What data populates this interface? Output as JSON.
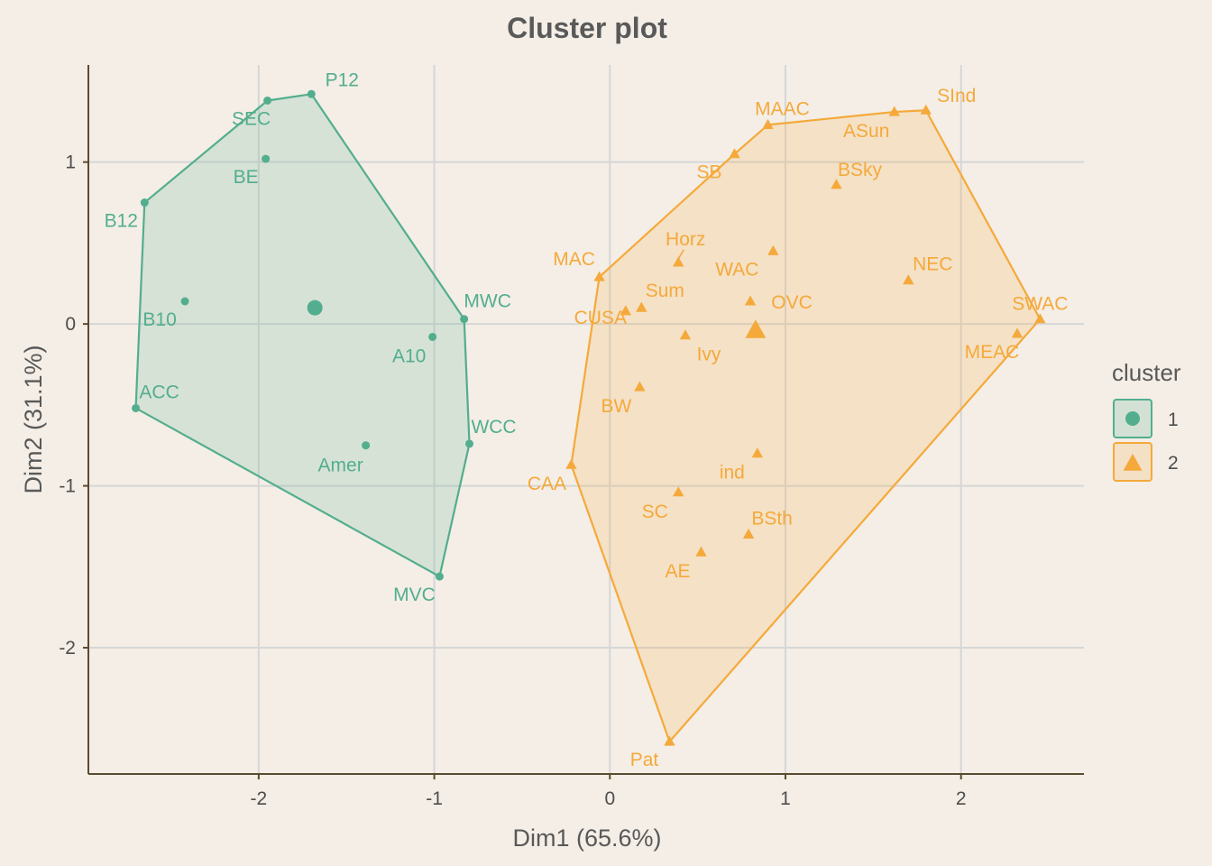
{
  "chart_data": {
    "type": "scatter",
    "title": "Cluster plot",
    "xlabel": "Dim1 (65.6%)",
    "ylabel": "Dim2 (31.1%)",
    "xlim": [
      -2.97,
      2.7
    ],
    "ylim": [
      -2.78,
      1.6
    ],
    "x_ticks": [
      -2,
      -1,
      0,
      1,
      2
    ],
    "y_ticks": [
      -2,
      -1,
      0,
      1
    ],
    "x_tick_labels": [
      "-2",
      "-1",
      "0",
      "1",
      "2"
    ],
    "y_tick_labels": [
      "-2",
      "-1",
      "0",
      "1"
    ],
    "grid": true,
    "legend": {
      "title": "cluster",
      "position": "right"
    },
    "series": [
      {
        "name": "1",
        "color": "#52AE8E",
        "shape": "circle",
        "center": {
          "x": -1.68,
          "y": 0.1
        },
        "hull": [
          "P12",
          "SEC",
          "B12",
          "ACC",
          "MVC",
          "WCC",
          "MWC"
        ],
        "points": [
          {
            "label": "P12",
            "x": -1.7,
            "y": 1.42
          },
          {
            "label": "SEC",
            "x": -1.95,
            "y": 1.38
          },
          {
            "label": "BE",
            "x": -1.96,
            "y": 1.02
          },
          {
            "label": "B12",
            "x": -2.65,
            "y": 0.75
          },
          {
            "label": "B10",
            "x": -2.42,
            "y": 0.14
          },
          {
            "label": "ACC",
            "x": -2.7,
            "y": -0.52
          },
          {
            "label": "Amer",
            "x": -1.39,
            "y": -0.75
          },
          {
            "label": "A10",
            "x": -1.01,
            "y": -0.08
          },
          {
            "label": "MWC",
            "x": -0.83,
            "y": 0.03
          },
          {
            "label": "WCC",
            "x": -0.8,
            "y": -0.74
          },
          {
            "label": "MVC",
            "x": -0.97,
            "y": -1.56
          }
        ]
      },
      {
        "name": "2",
        "color": "#F5A93A",
        "shape": "triangle",
        "center": {
          "x": 0.83,
          "y": -0.04
        },
        "hull": [
          "MAC",
          "SB",
          "MAAC",
          "ASun",
          "SInd",
          "SWAC",
          "Pat",
          "CAA"
        ],
        "points": [
          {
            "label": "MAAC",
            "x": 0.9,
            "y": 1.23
          },
          {
            "label": "SInd",
            "x": 1.8,
            "y": 1.32
          },
          {
            "label": "ASun",
            "x": 1.62,
            "y": 1.31
          },
          {
            "label": "SB",
            "x": 0.71,
            "y": 1.05
          },
          {
            "label": "BSky",
            "x": 1.29,
            "y": 0.86
          },
          {
            "label": "Horz",
            "x": 0.39,
            "y": 0.38
          },
          {
            "label": "WAC",
            "x": 0.93,
            "y": 0.45
          },
          {
            "label": "MAC",
            "x": -0.06,
            "y": 0.29
          },
          {
            "label": "NEC",
            "x": 1.7,
            "y": 0.27
          },
          {
            "label": "Sum",
            "x": 0.18,
            "y": 0.1
          },
          {
            "label": "OVC",
            "x": 0.8,
            "y": 0.14
          },
          {
            "label": "SWAC",
            "x": 2.45,
            "y": 0.03
          },
          {
            "label": "CUSA",
            "x": 0.09,
            "y": 0.08
          },
          {
            "label": "Ivy",
            "x": 0.43,
            "y": -0.07
          },
          {
            "label": "MEAC",
            "x": 2.32,
            "y": -0.06
          },
          {
            "label": "BW",
            "x": 0.17,
            "y": -0.39
          },
          {
            "label": "ind",
            "x": 0.84,
            "y": -0.8
          },
          {
            "label": "CAA",
            "x": -0.22,
            "y": -0.87
          },
          {
            "label": "SC",
            "x": 0.39,
            "y": -1.04
          },
          {
            "label": "BSth",
            "x": 0.79,
            "y": -1.3
          },
          {
            "label": "AE",
            "x": 0.52,
            "y": -1.41
          },
          {
            "label": "Pat",
            "x": 0.34,
            "y": -2.58
          }
        ]
      }
    ]
  }
}
